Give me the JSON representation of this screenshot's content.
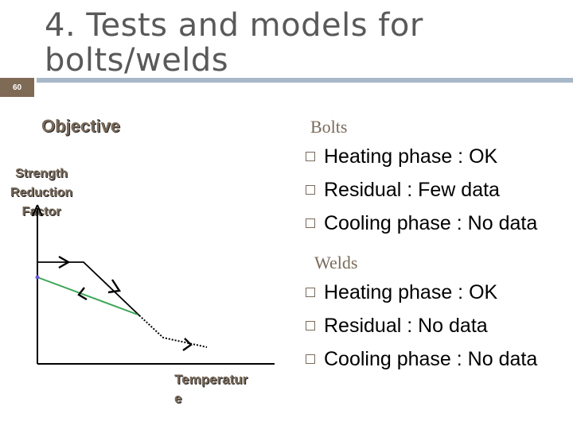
{
  "slide": {
    "number": "60",
    "title_line1": "4. Tests and models for",
    "title_line2": "bolts/welds"
  },
  "diagram": {
    "objective": "Objective",
    "y_label_lines": [
      "Strength",
      "Reduction",
      "Factor"
    ],
    "x_label_lines": [
      "Temperatur",
      "e"
    ]
  },
  "bolts": {
    "heading": "Bolts",
    "items": [
      "Heating phase : OK",
      "Residual : Few data",
      "Cooling phase : No data"
    ]
  },
  "welds": {
    "heading": "Welds",
    "items": [
      "Heating phase : OK",
      "Residual : No data",
      "Cooling phase : No data"
    ]
  },
  "colors": {
    "header_box": "#7f6a55",
    "title_bar": "#a8b8c8",
    "green_line": "#3aa655",
    "text_brown": "#7a6a5a"
  }
}
